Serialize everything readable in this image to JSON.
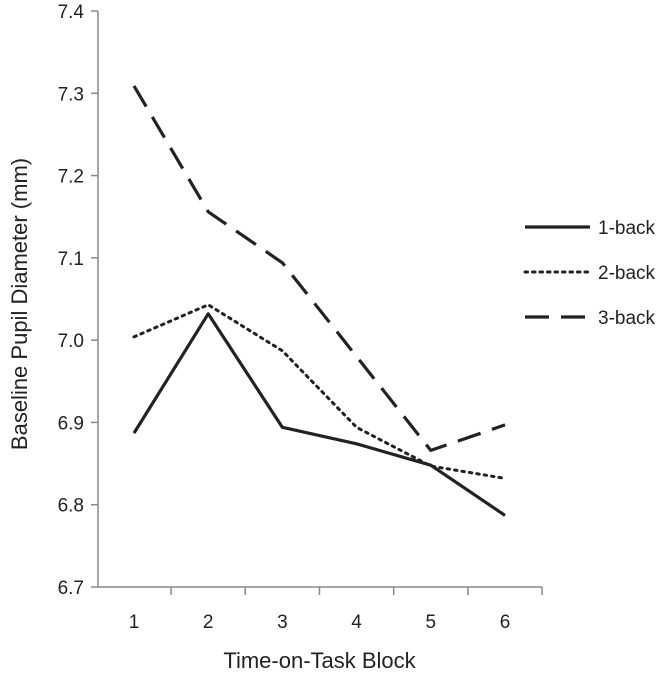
{
  "chart_data": {
    "type": "line",
    "title": "",
    "xlabel": "Time-on-Task Block",
    "ylabel": "Baseline Pupil Diameter (mm)",
    "categories": [
      "1",
      "2",
      "3",
      "4",
      "5",
      "6"
    ],
    "ylim": [
      6.7,
      7.4
    ],
    "yticks": [
      "6.7",
      "6.8",
      "6.9",
      "7.0",
      "7.1",
      "7.2",
      "7.3",
      "7.4"
    ],
    "grid": false,
    "legend_position": "right",
    "series": [
      {
        "name": "1-back",
        "style": "solid",
        "color": "#222222",
        "values": [
          6.887,
          7.032,
          6.894,
          6.874,
          6.848,
          6.787
        ]
      },
      {
        "name": "2-back",
        "style": "dotted",
        "color": "#222222",
        "values": [
          7.004,
          7.043,
          6.987,
          6.894,
          6.847,
          6.832
        ]
      },
      {
        "name": "3-back",
        "style": "dashed",
        "color": "#222222",
        "values": [
          7.309,
          7.156,
          7.094,
          6.98,
          6.866,
          6.897
        ]
      }
    ]
  }
}
